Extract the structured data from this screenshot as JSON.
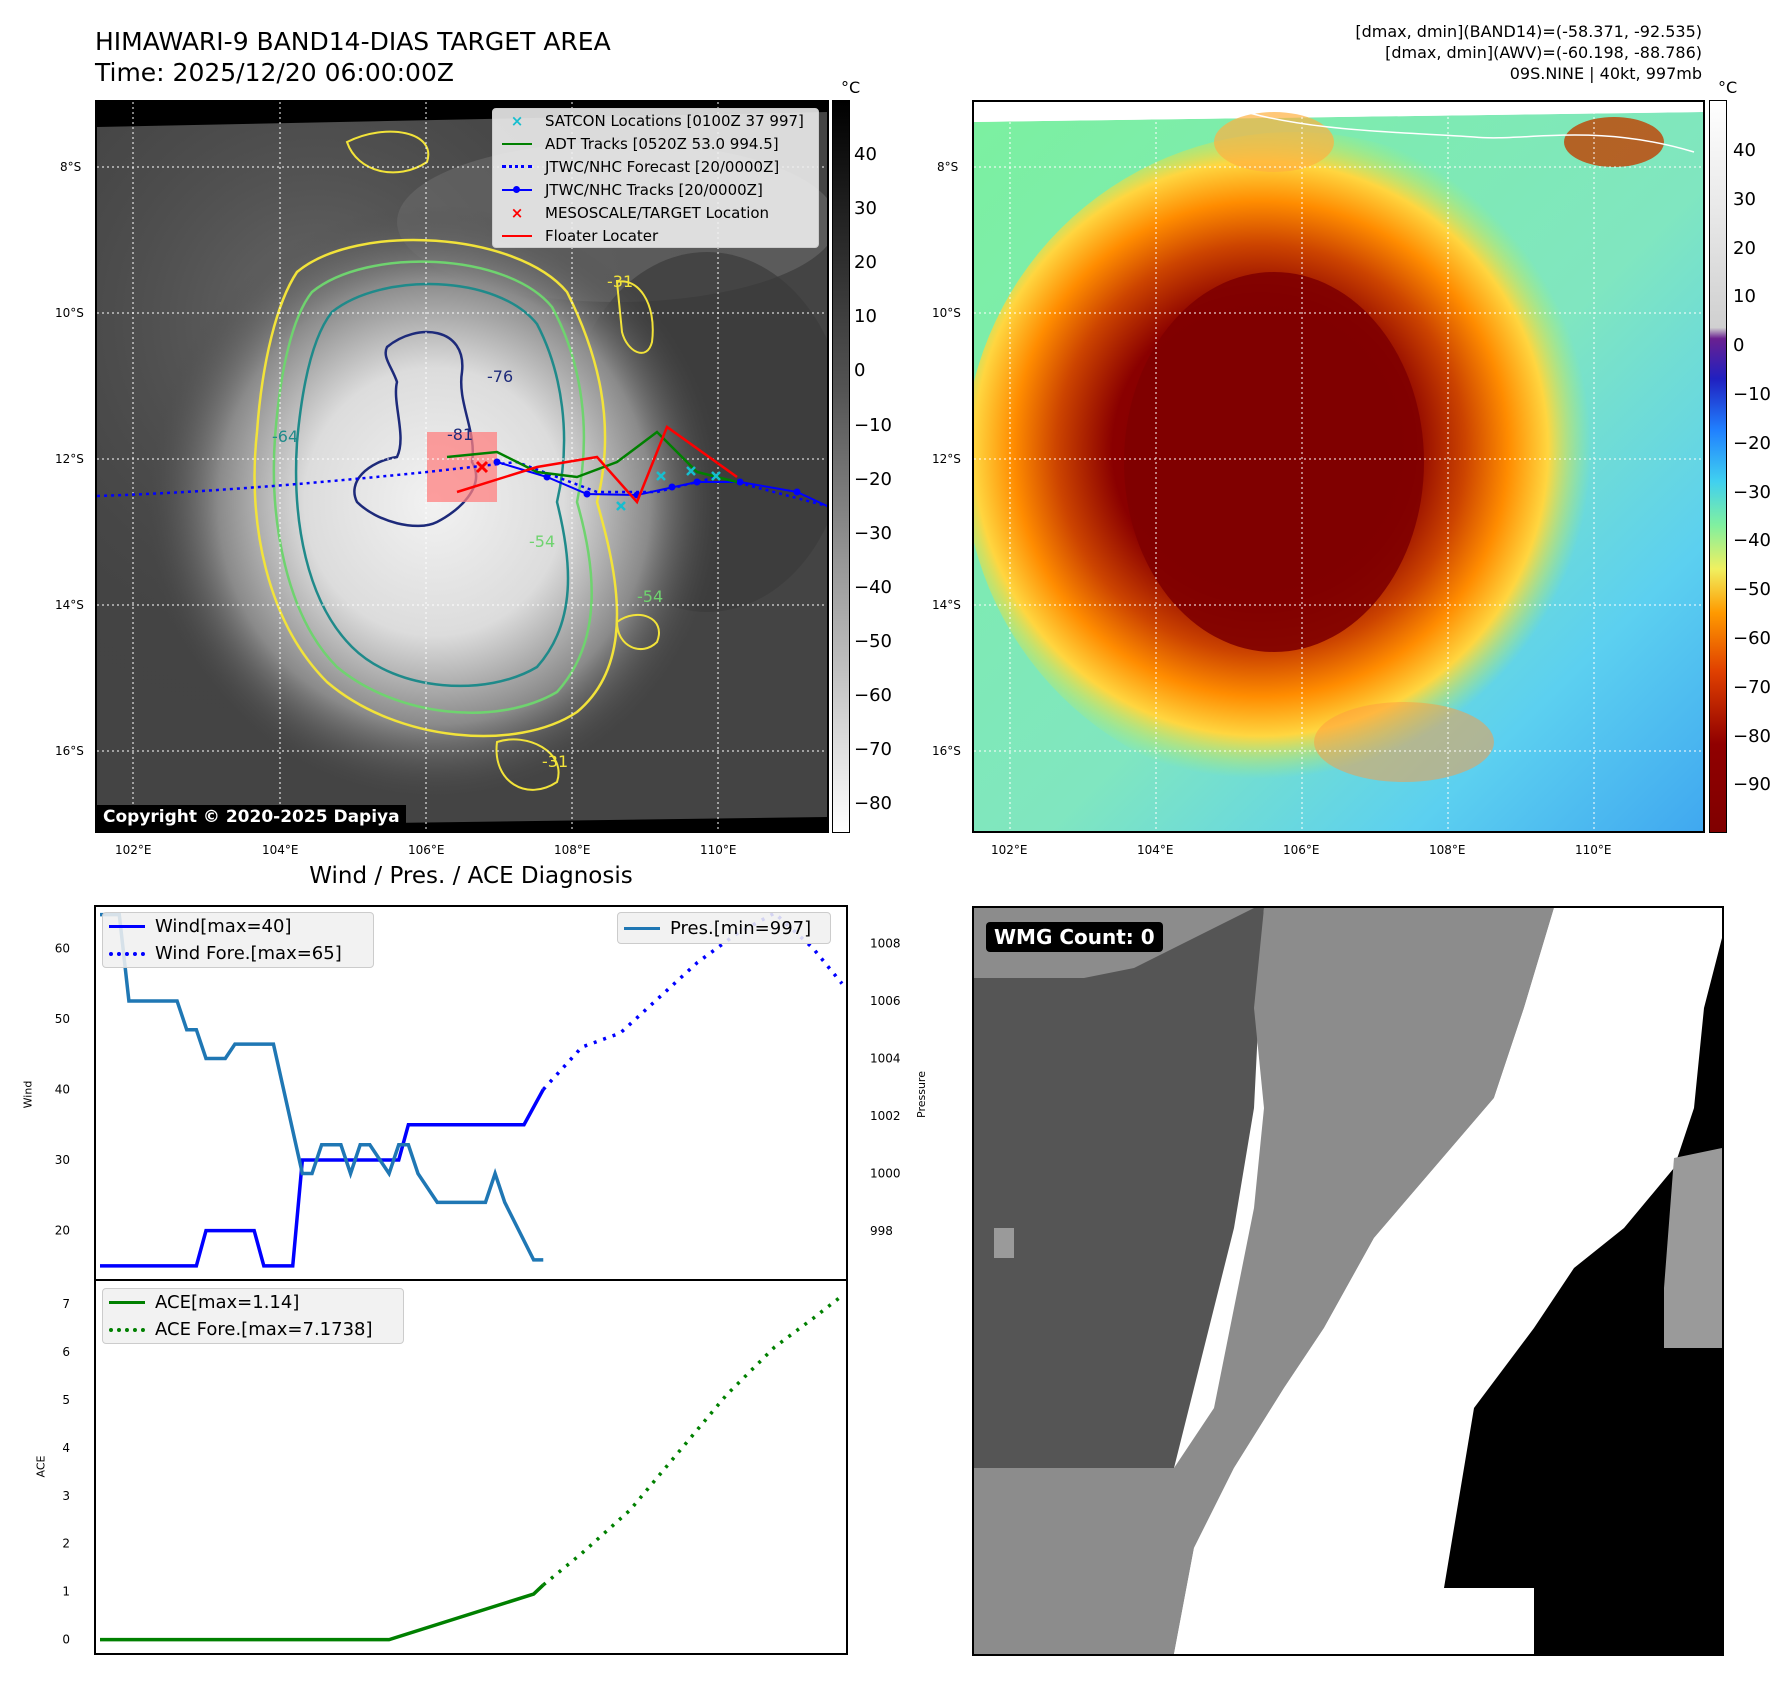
{
  "header": {
    "title_line1": "HIMAWARI-9 BAND14-DIAS TARGET AREA",
    "title_line2": "Time: 2025/12/20 06:00:00Z",
    "info_line1": "[dmax, dmin](BAND14)=(-58.371, -92.535)",
    "info_line2": "[dmax, dmin](AWV)=(-60.198, -88.786)",
    "info_line3": "09S.NINE | 40kt, 997mb"
  },
  "map_axes": {
    "lon_ticks": [
      "102°E",
      "104°E",
      "106°E",
      "108°E",
      "110°E"
    ],
    "lat_ticks": [
      "8°S",
      "10°S",
      "12°S",
      "14°S",
      "16°S"
    ]
  },
  "colorbar_left": {
    "unit": "°C",
    "ticks": [
      "40",
      "30",
      "20",
      "10",
      "0",
      "−10",
      "−20",
      "−30",
      "−40",
      "−50",
      "−60",
      "−70",
      "−80"
    ]
  },
  "colorbar_right": {
    "unit": "°C",
    "ticks": [
      "40",
      "30",
      "20",
      "10",
      "0",
      "−10",
      "−20",
      "−30",
      "−40",
      "−50",
      "−60",
      "−70",
      "−80",
      "−90"
    ]
  },
  "contour_labels": [
    "-31",
    "-54",
    "-64",
    "-76",
    "-81",
    "-54",
    "-31"
  ],
  "legend_map": {
    "items": [
      {
        "label": "SATCON Locations [0100Z 37 997]",
        "color": "#17becf",
        "symbol": "x-marker"
      },
      {
        "label": "ADT Tracks [0520Z 53.0 994.5]",
        "color": "#008000",
        "symbol": "line"
      },
      {
        "label": "JTWC/NHC Forecast [20/0000Z]",
        "color": "#0000ff",
        "symbol": "dotted"
      },
      {
        "label": "JTWC/NHC Tracks [20/0000Z]",
        "color": "#0000ff",
        "symbol": "line-dot"
      },
      {
        "label": "MESOSCALE/TARGET Location",
        "color": "#ff0000",
        "symbol": "x-marker"
      },
      {
        "label": "Floater Locater",
        "color": "#ff0000",
        "symbol": "line"
      }
    ]
  },
  "copyright": "Copyright © 2020-2025 Dapiya",
  "diagnosis": {
    "title": "Wind / Pres. / ACE Diagnosis",
    "wind_ylabel": "Wind",
    "pres_ylabel": "Pressure",
    "ace_ylabel": "ACE",
    "wind_legend": [
      "Wind[max=40]",
      "Wind Fore.[max=65]"
    ],
    "pres_legend": "Pres.[min=997]",
    "ace_legend": [
      "ACE[max=1.14]",
      "ACE Fore.[max=7.1738]"
    ],
    "wind_ticks": [
      "60",
      "50",
      "40",
      "30",
      "20"
    ],
    "pres_ticks": [
      "1008",
      "1006",
      "1004",
      "1002",
      "1000",
      "998"
    ],
    "ace_ticks": [
      "7",
      "6",
      "5",
      "4",
      "3",
      "2",
      "1",
      "0"
    ]
  },
  "wmg": {
    "label": "WMG Count: 0"
  },
  "colors": {
    "wind": "#0000ff",
    "pressure": "#1f77b4",
    "ace": "#008000",
    "contour_yellow": "#f2e33a",
    "contour_green": "#6fd36f",
    "contour_teal": "#1f8a8a",
    "contour_navy": "#1d2a7a"
  },
  "chart_data": [
    {
      "type": "line",
      "title": "Wind / Pres. / ACE Diagnosis",
      "ylabel": "Wind",
      "x": [
        0,
        1,
        2,
        3,
        4,
        5,
        6,
        7,
        8,
        9,
        10,
        11,
        12,
        13,
        14,
        15,
        16,
        17,
        18,
        19,
        20,
        21,
        22,
        23,
        24,
        25,
        26,
        27,
        28,
        29,
        30,
        31,
        32,
        33,
        34,
        35,
        36,
        37,
        38,
        39,
        40,
        41,
        42,
        43,
        44,
        45,
        46,
        47,
        48,
        49,
        50,
        51,
        52,
        53,
        54,
        55,
        56,
        57,
        58,
        59,
        60,
        61,
        62,
        63,
        64,
        65,
        66,
        67,
        68,
        69,
        70,
        71,
        72,
        73,
        74,
        75,
        76,
        77
      ],
      "series": [
        {
          "name": "Wind[max=40]",
          "style": "solid",
          "x": [
            0,
            10,
            11,
            16,
            17,
            20,
            21,
            26,
            27,
            31,
            32,
            35,
            36,
            43,
            44,
            46
          ],
          "values": [
            15,
            15,
            20,
            20,
            15,
            15,
            30,
            30,
            30,
            30,
            35,
            35,
            35,
            35,
            35,
            40
          ]
        },
        {
          "name": "Wind Fore.[max=65]",
          "style": "dotted",
          "x": [
            46,
            48,
            50,
            54,
            58,
            62,
            66,
            70,
            74,
            77
          ],
          "values": [
            40,
            43,
            46,
            48,
            53,
            58,
            62,
            65,
            60,
            55
          ]
        },
        {
          "name": "Pres.[min=997]",
          "axis": "right",
          "style": "solid",
          "x": [
            0,
            2,
            3,
            4,
            8,
            9,
            10,
            11,
            13,
            14,
            15,
            17,
            18,
            19,
            21,
            22,
            23,
            25,
            26,
            27,
            28,
            30,
            31,
            32,
            33,
            35,
            37,
            38,
            40,
            41,
            42,
            45,
            46
          ],
          "values": [
            1009,
            1009,
            1006,
            1006,
            1006,
            1005,
            1005,
            1004,
            1004,
            1004.5,
            1004.5,
            1004.5,
            1004.5,
            1003,
            1000,
            1000,
            1001,
            1001,
            1000,
            1001,
            1001,
            1000,
            1001,
            1001,
            1000,
            999,
            999,
            999,
            999,
            1000,
            999,
            997,
            997
          ]
        }
      ],
      "ylim": [
        13,
        66
      ],
      "y2label": "Pressure",
      "y2lim": [
        996.3,
        1009.3
      ]
    },
    {
      "type": "line",
      "ylabel": "ACE",
      "series": [
        {
          "name": "ACE[max=1.14]",
          "style": "solid",
          "x": [
            0,
            30,
            45,
            46
          ],
          "values": [
            0,
            0,
            0.95,
            1.14
          ]
        },
        {
          "name": "ACE Fore.[max=7.1738]",
          "style": "dotted",
          "x": [
            46,
            50,
            55,
            60,
            65,
            70,
            74,
            77
          ],
          "values": [
            1.14,
            1.8,
            2.7,
            3.9,
            5.1,
            6.1,
            6.7,
            7.17
          ]
        }
      ],
      "ylim": [
        -0.3,
        7.5
      ]
    }
  ]
}
